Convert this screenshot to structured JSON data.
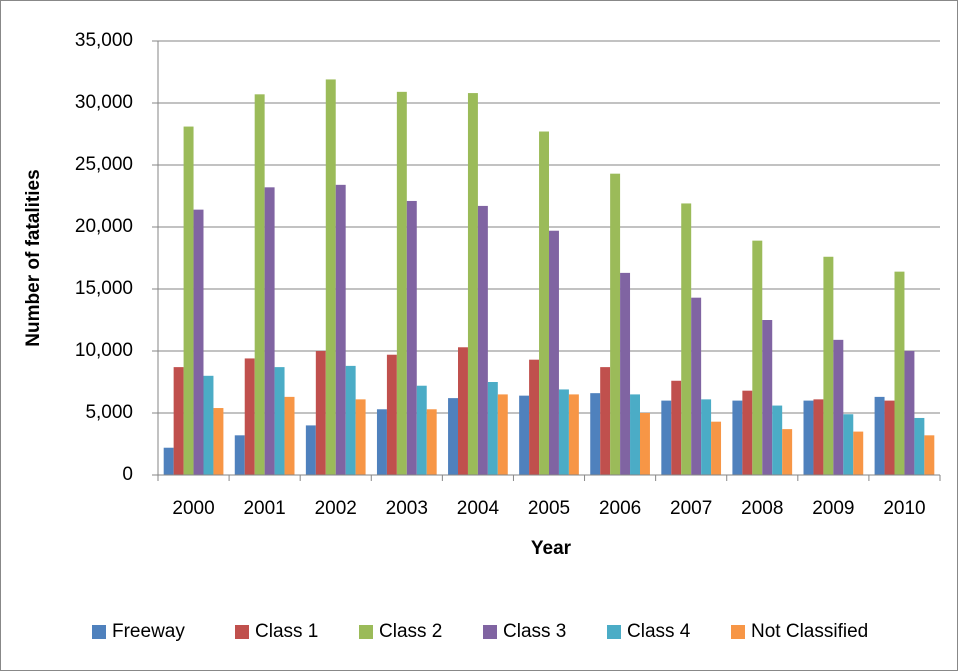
{
  "chart_data": {
    "type": "bar",
    "x_label": "Year",
    "y_label": "Number of fatalities",
    "categories": [
      "2000",
      "2001",
      "2002",
      "2003",
      "2004",
      "2005",
      "2006",
      "2007",
      "2008",
      "2009",
      "2010"
    ],
    "series": [
      {
        "name": "Freeway",
        "color": "#4f81bd",
        "values": [
          2200,
          3200,
          4000,
          5300,
          6200,
          6400,
          6600,
          6000,
          6000,
          6000,
          6300
        ]
      },
      {
        "name": "Class 1",
        "color": "#c0504d",
        "values": [
          8700,
          9400,
          10000,
          9700,
          10300,
          9300,
          8700,
          7600,
          6800,
          6100,
          6000
        ]
      },
      {
        "name": "Class 2",
        "color": "#9bbb59",
        "values": [
          28100,
          30700,
          31900,
          30900,
          30800,
          27700,
          24300,
          21900,
          18900,
          17600,
          16400
        ]
      },
      {
        "name": "Class 3",
        "color": "#8064a2",
        "values": [
          21400,
          23200,
          23400,
          22100,
          21700,
          19700,
          16300,
          14300,
          12500,
          10900,
          10000
        ]
      },
      {
        "name": "Class 4",
        "color": "#4bacc6",
        "values": [
          8000,
          8700,
          8800,
          7200,
          7500,
          6900,
          6500,
          6100,
          5600,
          4900,
          4600
        ]
      },
      {
        "name": "Not Classified",
        "color": "#f79646",
        "values": [
          5400,
          6300,
          6100,
          5300,
          6500,
          6500,
          5000,
          4300,
          3700,
          3500,
          3200
        ]
      }
    ],
    "ylim": [
      0,
      35000
    ],
    "yticks": [
      0,
      {
        "value": 5000,
        "label": "5,000"
      },
      {
        "value": 10000,
        "label": "10,000"
      },
      {
        "value": 15000,
        "label": "15,000"
      },
      {
        "value": 20000,
        "label": "20,000"
      },
      {
        "value": 25000,
        "label": "25,000"
      },
      {
        "value": 30000,
        "label": "30,000"
      },
      {
        "value": 35000,
        "label": "35,000"
      }
    ],
    "grid": true,
    "legend": "bottom"
  }
}
